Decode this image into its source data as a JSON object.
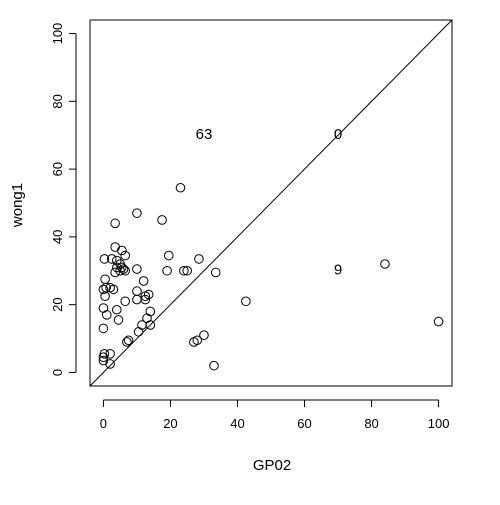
{
  "chart_data": {
    "type": "scatter",
    "title": "",
    "xlabel": "GP02",
    "ylabel": "wong1",
    "xlim": [
      -4,
      104
    ],
    "ylim": [
      -4,
      104
    ],
    "x_ticks": [
      0,
      20,
      40,
      60,
      80,
      100
    ],
    "y_ticks": [
      0,
      20,
      40,
      60,
      80,
      100
    ],
    "grid": false,
    "legend": "none",
    "reference_line": {
      "type": "identity",
      "slope": 1,
      "intercept": 0
    },
    "colors": {
      "axis": "#000000",
      "marker": "#000000",
      "background": "#ffffff"
    },
    "annotations": [
      {
        "text": "63",
        "x": 30,
        "y": 70
      },
      {
        "text": "0",
        "x": 70,
        "y": 70
      },
      {
        "text": "9",
        "x": 70,
        "y": 30
      }
    ],
    "series": [
      {
        "marker": "open-circle",
        "points": [
          [
            0,
            3.5
          ],
          [
            0,
            4.5
          ],
          [
            0.3,
            5.5
          ],
          [
            0,
            13
          ],
          [
            0,
            19
          ],
          [
            0.5,
            22.5
          ],
          [
            0,
            24.5
          ],
          [
            0.8,
            25
          ],
          [
            0.5,
            27.5
          ],
          [
            0.3,
            33.5
          ],
          [
            1,
            17
          ],
          [
            2,
            2.5
          ],
          [
            2,
            5.5
          ],
          [
            2,
            25
          ],
          [
            2.5,
            33.5
          ],
          [
            3,
            24.5
          ],
          [
            3.5,
            44
          ],
          [
            3.5,
            37
          ],
          [
            3.5,
            29.5
          ],
          [
            4,
            33
          ],
          [
            4,
            31
          ],
          [
            4,
            18.5
          ],
          [
            4.5,
            15.5
          ],
          [
            5,
            30
          ],
          [
            5,
            32
          ],
          [
            5.5,
            31
          ],
          [
            5.5,
            36
          ],
          [
            6,
            30.5
          ],
          [
            6.5,
            30
          ],
          [
            6.5,
            34.5
          ],
          [
            6.5,
            21
          ],
          [
            7,
            9
          ],
          [
            7.5,
            9.5
          ],
          [
            10,
            47
          ],
          [
            10,
            30.5
          ],
          [
            10,
            24
          ],
          [
            10,
            21.5
          ],
          [
            10.5,
            12
          ],
          [
            11.5,
            14
          ],
          [
            12,
            27
          ],
          [
            12.5,
            22.5
          ],
          [
            12.5,
            21.5
          ],
          [
            13,
            16
          ],
          [
            13.5,
            23
          ],
          [
            14,
            18
          ],
          [
            14,
            14
          ],
          [
            17.5,
            45
          ],
          [
            19,
            30
          ],
          [
            19.5,
            34.5
          ],
          [
            23,
            54.5
          ],
          [
            24,
            30
          ],
          [
            25,
            30
          ],
          [
            27,
            9
          ],
          [
            28,
            9.5
          ],
          [
            28.5,
            33.5
          ],
          [
            30,
            11
          ],
          [
            33,
            2
          ],
          [
            33.5,
            29.5
          ],
          [
            42.5,
            21
          ],
          [
            84,
            32
          ],
          [
            100,
            15
          ]
        ]
      }
    ]
  }
}
